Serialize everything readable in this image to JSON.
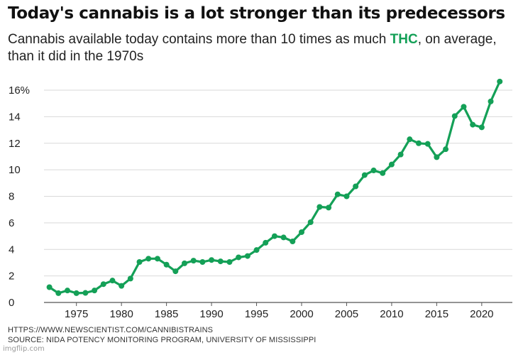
{
  "header": {
    "title": "Today's cannabis is a lot stronger than its predecessors",
    "subtitle_before": "Cannabis available today contains more than 10 times as much ",
    "subtitle_highlight": "THC",
    "subtitle_after": ", on average, than it did in the 1970s"
  },
  "footer": {
    "url": "HTTPS://WWW.NEWSCIENTIST.COM/CANNIBISTRAINS",
    "source": "SOURCE: NIDA POTENCY MONITORING PROGRAM, UNIVERSITY OF MISSISSIPPI"
  },
  "watermark": "imgflip.com",
  "colors": {
    "line": "#14a057",
    "highlight": "#14a057",
    "grid": "#d9d9d9"
  },
  "chart_data": {
    "type": "line",
    "title": "Today's cannabis is a lot stronger than its predecessors",
    "xlabel": "",
    "ylabel": "",
    "x": [
      1972,
      1973,
      1974,
      1975,
      1976,
      1977,
      1978,
      1979,
      1980,
      1981,
      1982,
      1983,
      1984,
      1985,
      1986,
      1987,
      1988,
      1989,
      1990,
      1991,
      1992,
      1993,
      1994,
      1995,
      1996,
      1997,
      1998,
      1999,
      2000,
      2001,
      2002,
      2003,
      2004,
      2005,
      2006,
      2007,
      2008,
      2009,
      2010,
      2011,
      2012,
      2013,
      2014,
      2015,
      2016,
      2017,
      2018,
      2019,
      2020,
      2021,
      2022
    ],
    "series": [
      {
        "values": [
          1.15,
          0.7,
          0.9,
          0.7,
          0.72,
          0.9,
          1.38,
          1.65,
          1.25,
          1.8,
          3.05,
          3.3,
          3.3,
          2.85,
          2.35,
          2.95,
          3.15,
          3.05,
          3.2,
          3.1,
          3.05,
          3.4,
          3.5,
          3.95,
          4.5,
          5.0,
          4.9,
          4.6,
          5.3,
          6.05,
          7.2,
          7.15,
          8.15,
          8.0,
          8.75,
          9.6,
          9.95,
          9.75,
          10.4,
          11.15,
          12.3,
          12.0,
          11.95,
          10.95,
          11.55,
          14.05,
          14.75,
          13.4,
          13.2,
          15.15,
          16.65
        ]
      }
    ],
    "xticks": [
      1975,
      1980,
      1985,
      1990,
      1995,
      2000,
      2005,
      2010,
      2015,
      2020
    ],
    "yticks": [
      0,
      2,
      4,
      6,
      8,
      10,
      12,
      14,
      16
    ],
    "ytick_labels": [
      "0",
      "2",
      "4",
      "6",
      "8",
      "10",
      "12",
      "14",
      "16%"
    ],
    "xlim": [
      1971.4,
      2023.4
    ],
    "ylim": [
      0,
      16
    ],
    "grid": "horizontal",
    "legend": "none"
  }
}
